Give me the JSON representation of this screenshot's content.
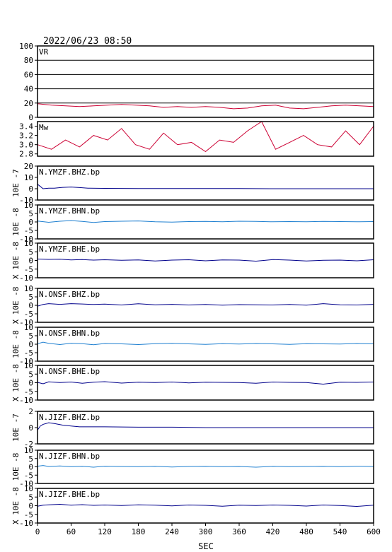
{
  "header": {
    "timestamp": "2022/06/23 08:50"
  },
  "colors": {
    "frame": "#000000",
    "vr_trace": "#cc0033",
    "mw_trace": "#cc0033",
    "bhz_trace": "#00008b",
    "bhn_trace": "#1e7fd0",
    "bhe_trace": "#00008b"
  },
  "chart_data": [
    {
      "type": "line",
      "panel": "vr",
      "label": "VR",
      "ylim": [
        0,
        100
      ],
      "yticks": [
        0,
        20,
        40,
        60,
        80,
        100
      ],
      "grid": true,
      "x": [
        0,
        25,
        50,
        75,
        100,
        125,
        150,
        175,
        200,
        225,
        250,
        275,
        300,
        325,
        350,
        375,
        400,
        425,
        450,
        475,
        500,
        525,
        550,
        575,
        600
      ],
      "values": [
        19,
        17,
        16,
        15,
        16,
        17,
        18,
        17,
        16,
        14,
        15,
        14,
        15,
        14,
        12,
        13,
        16,
        17,
        13,
        12,
        14,
        16,
        17,
        16,
        15
      ]
    },
    {
      "type": "line",
      "panel": "mw",
      "label": "Mw",
      "ylim": [
        2.75,
        3.5
      ],
      "yticks": [
        2.8,
        3.0,
        3.2,
        3.4
      ],
      "ytick_labels": [
        "2.8",
        "3.0",
        "3.2",
        "3.4"
      ],
      "x": [
        0,
        25,
        50,
        75,
        100,
        125,
        150,
        175,
        200,
        225,
        250,
        275,
        300,
        325,
        350,
        375,
        400,
        425,
        450,
        475,
        500,
        525,
        550,
        575,
        600
      ],
      "values": [
        3.0,
        2.9,
        3.1,
        2.95,
        3.2,
        3.1,
        3.35,
        3.0,
        2.9,
        3.25,
        3.0,
        3.05,
        2.85,
        3.1,
        3.05,
        3.3,
        3.5,
        2.9,
        3.05,
        3.2,
        3.0,
        2.95,
        3.3,
        3.0,
        3.4
      ]
    },
    {
      "type": "line",
      "panel": "ymzf-bhz",
      "label": "N.YMZF.BHZ.bp",
      "ylim": [
        -10,
        20
      ],
      "yticks": [
        -10,
        0,
        10,
        20
      ],
      "scale_label": "10E -7",
      "x": [
        0,
        5,
        10,
        20,
        30,
        45,
        60,
        75,
        90,
        120,
        180,
        240,
        300,
        360,
        420,
        480,
        540,
        600
      ],
      "values": [
        4,
        2,
        0,
        0.5,
        0.5,
        1.2,
        1.5,
        1,
        0.5,
        0.3,
        0.2,
        0.1,
        0.1,
        0.1,
        0,
        0,
        0,
        0
      ]
    },
    {
      "type": "line",
      "panel": "ymzf-bhn",
      "label": "N.YMZF.BHN.bp",
      "ylim": [
        -10,
        10
      ],
      "yticks": [
        -10,
        -5,
        0,
        5,
        10
      ],
      "scale_label": "10E -8",
      "x": [
        0,
        20,
        40,
        60,
        80,
        100,
        120,
        150,
        180,
        210,
        240,
        270,
        300,
        330,
        360,
        390,
        420,
        450,
        480,
        510,
        540,
        570,
        600
      ],
      "values": [
        0.5,
        -0.2,
        0.4,
        0.8,
        0.3,
        -0.3,
        0.2,
        0.4,
        0.6,
        0.1,
        -0.1,
        0.2,
        0.3,
        0.1,
        0.4,
        0.3,
        0.1,
        0.2,
        0.1,
        0.3,
        0.2,
        0.1,
        0.2
      ]
    },
    {
      "type": "line",
      "panel": "ymzf-bhe",
      "label": "N.YMZF.BHE.bp",
      "ylim": [
        -10,
        10
      ],
      "yticks": [
        -10,
        -5,
        0,
        5,
        10
      ],
      "scale_label": "X 10E -8",
      "x": [
        0,
        20,
        40,
        60,
        80,
        100,
        120,
        150,
        180,
        210,
        240,
        270,
        300,
        330,
        360,
        390,
        420,
        450,
        480,
        510,
        540,
        570,
        600
      ],
      "values": [
        0.8,
        0.6,
        0.7,
        0.3,
        0.5,
        0.2,
        0.4,
        0.1,
        0.3,
        -0.3,
        0.2,
        0.4,
        -0.2,
        0.3,
        0.2,
        -0.4,
        0.5,
        0.2,
        -0.3,
        0.1,
        0.2,
        -0.2,
        0.4
      ]
    },
    {
      "type": "line",
      "panel": "onsf-bhz",
      "label": "N.ONSF.BHZ.bp",
      "ylim": [
        -10,
        10
      ],
      "yticks": [
        -10,
        -5,
        0,
        5,
        10
      ],
      "scale_label": "X 10E -8",
      "x": [
        0,
        10,
        20,
        40,
        60,
        80,
        100,
        120,
        150,
        180,
        210,
        240,
        270,
        300,
        330,
        360,
        390,
        420,
        450,
        480,
        510,
        540,
        570,
        600
      ],
      "values": [
        -0.5,
        0.5,
        1,
        0.6,
        1,
        0.8,
        0.5,
        0.7,
        0.2,
        0.9,
        0.3,
        0.6,
        0.2,
        0.5,
        0.1,
        0.4,
        0.3,
        0.2,
        0.5,
        0.1,
        1,
        0.3,
        0.2,
        0.6
      ]
    },
    {
      "type": "line",
      "panel": "onsf-bhn",
      "label": "N.ONSF.BHN.bp",
      "ylim": [
        -10,
        10
      ],
      "yticks": [
        -10,
        -5,
        0,
        5,
        10
      ],
      "scale_label": "10E -8",
      "x": [
        0,
        10,
        20,
        40,
        60,
        80,
        100,
        120,
        150,
        180,
        210,
        240,
        270,
        300,
        330,
        360,
        390,
        420,
        450,
        480,
        510,
        540,
        570,
        600
      ],
      "values": [
        0.3,
        1.2,
        0.5,
        -0.2,
        0.6,
        0.3,
        -0.3,
        0.4,
        0.2,
        -0.2,
        0.3,
        0.5,
        0.2,
        -0.1,
        0.3,
        0.1,
        0.4,
        0.2,
        -0.1,
        0.3,
        0.2,
        0.1,
        0.4,
        0.2
      ]
    },
    {
      "type": "line",
      "panel": "onsf-bhe",
      "label": "N.ONSF.BHE.bp",
      "ylim": [
        -10,
        10
      ],
      "yticks": [
        -10,
        -5,
        0,
        5,
        10
      ],
      "scale_label": "X 10E -8",
      "x": [
        0,
        10,
        20,
        40,
        60,
        80,
        100,
        120,
        150,
        180,
        210,
        240,
        270,
        300,
        330,
        360,
        390,
        420,
        450,
        480,
        510,
        540,
        570,
        600
      ],
      "values": [
        0.2,
        -0.6,
        0.5,
        0.1,
        0.4,
        -0.3,
        0.3,
        0.6,
        -0.2,
        0.3,
        0.1,
        0.4,
        -0.1,
        0.3,
        0.2,
        0.1,
        -0.3,
        0.4,
        0.2,
        0.1,
        -0.8,
        0.3,
        0.2,
        0.4
      ]
    },
    {
      "type": "line",
      "panel": "jizf-bhz",
      "label": "N.JIZF.BHZ.bp",
      "ylim": [
        -2,
        2
      ],
      "yticks": [
        -2,
        0,
        2
      ],
      "scale_label": "10E -7",
      "x": [
        0,
        5,
        10,
        20,
        30,
        45,
        60,
        75,
        90,
        120,
        180,
        240,
        300,
        360,
        420,
        480,
        540,
        600
      ],
      "values": [
        -0.3,
        0.2,
        0.4,
        0.6,
        0.5,
        0.3,
        0.2,
        0.1,
        0.1,
        0.1,
        0.05,
        0.05,
        0,
        0,
        0,
        0,
        0,
        0
      ]
    },
    {
      "type": "line",
      "panel": "jizf-bhn",
      "label": "N.JIZF.BHN.bp",
      "ylim": [
        -10,
        10
      ],
      "yticks": [
        -10,
        -5,
        0,
        5,
        10
      ],
      "scale_label": "10E -8",
      "x": [
        0,
        10,
        20,
        40,
        60,
        80,
        100,
        120,
        150,
        180,
        210,
        240,
        270,
        300,
        330,
        360,
        390,
        420,
        450,
        480,
        510,
        540,
        570,
        600
      ],
      "values": [
        0.4,
        0.8,
        0.2,
        0.5,
        0.1,
        0.3,
        -0.2,
        0.4,
        0.2,
        0.1,
        0.3,
        -0.1,
        0.2,
        0.3,
        0.1,
        0.2,
        -0.2,
        0.3,
        0.1,
        0.2,
        0.3,
        0.1,
        0.4,
        0.2
      ]
    },
    {
      "type": "line",
      "panel": "jizf-bhe",
      "label": "N.JIZF.BHE.bp",
      "ylim": [
        -10,
        10
      ],
      "yticks": [
        -10,
        -5,
        0,
        5,
        10
      ],
      "scale_label": "X 10E -8",
      "x": [
        0,
        10,
        20,
        40,
        60,
        80,
        100,
        120,
        150,
        180,
        210,
        240,
        270,
        300,
        330,
        360,
        390,
        420,
        450,
        480,
        510,
        540,
        570,
        600
      ],
      "values": [
        -0.3,
        0.3,
        0.5,
        0.8,
        0.3,
        0.6,
        0.2,
        0.4,
        0.1,
        0.5,
        0.3,
        -0.1,
        0.4,
        0.2,
        -0.3,
        0.3,
        0.1,
        0.4,
        0.2,
        -0.2,
        0.4,
        0.1,
        -0.4,
        0.3
      ]
    }
  ],
  "xaxis": {
    "label": "SEC",
    "ticks": [
      0,
      60,
      120,
      180,
      240,
      300,
      360,
      420,
      480,
      540,
      600
    ],
    "xlim": [
      0,
      600
    ]
  }
}
